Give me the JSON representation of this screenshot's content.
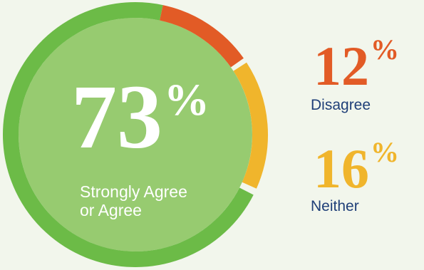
{
  "chart_data": {
    "type": "pie",
    "style": "donut",
    "slices": [
      {
        "key": "agree",
        "value": 73,
        "color": "#6cbb47",
        "label": "Strongly Agree\nor Agree"
      },
      {
        "key": "disagree",
        "value": 12,
        "color": "#e25b26",
        "label": "Disagree"
      },
      {
        "key": "neither",
        "value": 16,
        "color": "#f0b52c",
        "label": "Neither"
      }
    ]
  },
  "center": {
    "value": "73",
    "unit": "%",
    "label_line1": "Strongly Agree",
    "label_line2": "or Agree",
    "inner_color": "#97cb70"
  },
  "stats": [
    {
      "value": "12",
      "unit": "%",
      "label": "Disagree",
      "color": "#e25b26"
    },
    {
      "value": "16",
      "unit": "%",
      "label": "Neither",
      "color": "#f0b52c"
    }
  ]
}
